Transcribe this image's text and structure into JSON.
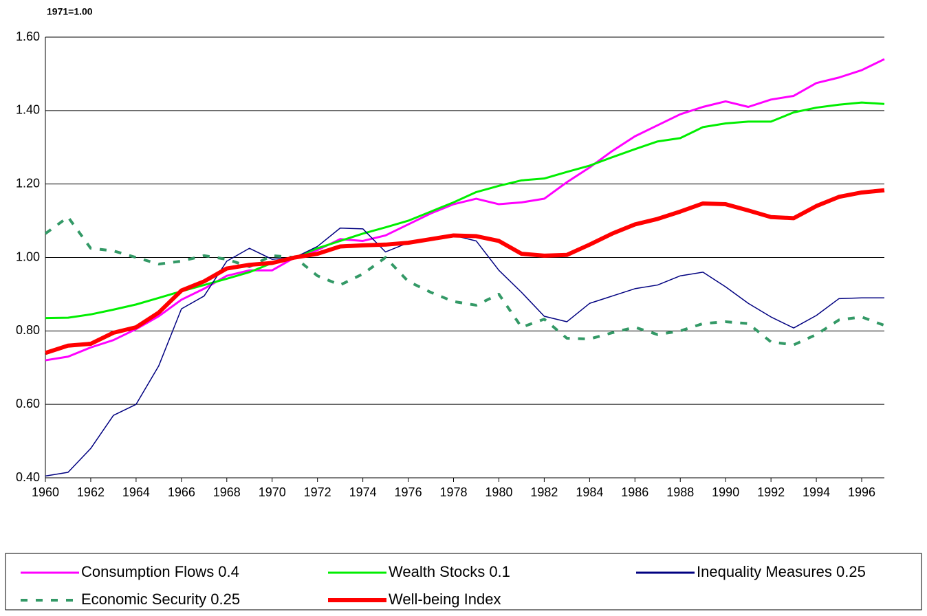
{
  "chart_data": {
    "type": "line",
    "ylabel": "1971=1.00",
    "x": [
      1960,
      1961,
      1962,
      1963,
      1964,
      1965,
      1966,
      1967,
      1968,
      1969,
      1970,
      1971,
      1972,
      1973,
      1974,
      1975,
      1976,
      1977,
      1978,
      1979,
      1980,
      1981,
      1982,
      1983,
      1984,
      1985,
      1986,
      1987,
      1988,
      1989,
      1990,
      1991,
      1992,
      1993,
      1994,
      1995,
      1996,
      1997
    ],
    "xlim": [
      1960,
      1997
    ],
    "xticks": [
      1960,
      1962,
      1964,
      1966,
      1968,
      1970,
      1972,
      1974,
      1976,
      1978,
      1980,
      1982,
      1984,
      1986,
      1988,
      1990,
      1992,
      1994,
      1996
    ],
    "ylim": [
      0.4,
      1.6
    ],
    "yticks": [
      {
        "value": 0.4,
        "label": "0.40"
      },
      {
        "value": 0.6,
        "label": "0.60"
      },
      {
        "value": 0.8,
        "label": "0.80"
      },
      {
        "value": 1.0,
        "label": "1.00"
      },
      {
        "value": 1.2,
        "label": "1.20"
      },
      {
        "value": 1.4,
        "label": "1.40"
      },
      {
        "value": 1.6,
        "label": "1.60"
      }
    ],
    "grid": true,
    "series": [
      {
        "name": "Consumption Flows 0.4",
        "color": "#ff00ff",
        "width": 3,
        "dash": false,
        "values": [
          0.72,
          0.73,
          0.755,
          0.775,
          0.805,
          0.84,
          0.885,
          0.915,
          0.95,
          0.965,
          0.965,
          1.0,
          1.02,
          1.05,
          1.045,
          1.06,
          1.09,
          1.12,
          1.145,
          1.16,
          1.145,
          1.15,
          1.16,
          1.205,
          1.245,
          1.29,
          1.33,
          1.36,
          1.39,
          1.41,
          1.425,
          1.41,
          1.43,
          1.44,
          1.475,
          1.49,
          1.51,
          1.54
        ]
      },
      {
        "name": "Wealth Stocks 0.1",
        "color": "#00ee00",
        "width": 3,
        "dash": false,
        "values": [
          0.835,
          0.836,
          0.845,
          0.858,
          0.872,
          0.89,
          0.908,
          0.925,
          0.942,
          0.96,
          0.985,
          1.0,
          1.025,
          1.045,
          1.065,
          1.082,
          1.1,
          1.125,
          1.15,
          1.178,
          1.195,
          1.21,
          1.215,
          1.233,
          1.25,
          1.273,
          1.295,
          1.316,
          1.325,
          1.355,
          1.365,
          1.37,
          1.37,
          1.395,
          1.408,
          1.416,
          1.422,
          1.418
        ]
      },
      {
        "name": "Inequality Measures 0.25",
        "color": "#000080",
        "width": 1.5,
        "dash": false,
        "values": [
          0.405,
          0.415,
          0.48,
          0.57,
          0.6,
          0.705,
          0.86,
          0.895,
          0.99,
          1.025,
          0.995,
          1.0,
          1.03,
          1.08,
          1.078,
          1.015,
          1.04,
          1.05,
          1.06,
          1.045,
          0.965,
          0.905,
          0.84,
          0.825,
          0.875,
          0.895,
          0.915,
          0.925,
          0.95,
          0.96,
          0.92,
          0.875,
          0.838,
          0.808,
          0.842,
          0.888,
          0.89,
          0.89
        ]
      },
      {
        "name": "Economic Security 0.25",
        "color": "#339966",
        "width": 4,
        "dash": true,
        "values": [
          1.065,
          1.11,
          1.025,
          1.018,
          1.0,
          0.982,
          0.99,
          1.005,
          0.995,
          0.975,
          1.005,
          1.0,
          0.95,
          0.925,
          0.955,
          1.0,
          0.935,
          0.905,
          0.88,
          0.87,
          0.9,
          0.81,
          0.832,
          0.78,
          0.778,
          0.795,
          0.81,
          0.79,
          0.8,
          0.82,
          0.825,
          0.82,
          0.77,
          0.762,
          0.79,
          0.83,
          0.838,
          0.815
        ]
      },
      {
        "name": "Well-being Index",
        "color": "#ff0000",
        "width": 6,
        "dash": false,
        "values": [
          0.74,
          0.76,
          0.765,
          0.795,
          0.81,
          0.85,
          0.91,
          0.935,
          0.97,
          0.98,
          0.985,
          1.0,
          1.01,
          1.03,
          1.033,
          1.035,
          1.04,
          1.05,
          1.06,
          1.058,
          1.045,
          1.01,
          1.005,
          1.007,
          1.035,
          1.065,
          1.09,
          1.105,
          1.125,
          1.147,
          1.145,
          1.128,
          1.11,
          1.107,
          1.14,
          1.165,
          1.177,
          1.183
        ]
      }
    ]
  }
}
